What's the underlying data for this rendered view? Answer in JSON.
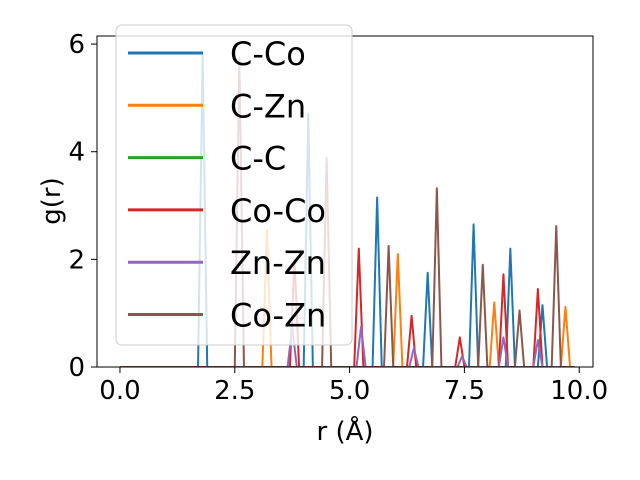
{
  "chart_data": {
    "type": "line",
    "xlabel": "r (Å)",
    "ylabel": "g(r)",
    "xlim": [
      -0.5,
      10.3
    ],
    "ylim": [
      0,
      6.15
    ],
    "xticks": [
      0.0,
      2.5,
      5.0,
      7.5,
      10.0
    ],
    "xtick_labels": [
      "0.0",
      "2.5",
      "5.0",
      "7.5",
      "10.0"
    ],
    "yticks": [
      0,
      2,
      4,
      6
    ],
    "ytick_labels": [
      "0",
      "2",
      "4",
      "6"
    ],
    "grid": false,
    "legend_position": "upper-left",
    "series": [
      {
        "name": "C-Co",
        "color": "#1f77b4",
        "peaks": [
          [
            1.8,
            5.8
          ],
          [
            4.1,
            4.7
          ],
          [
            5.6,
            3.15
          ],
          [
            6.7,
            1.75
          ],
          [
            7.7,
            2.65
          ],
          [
            8.5,
            2.2
          ],
          [
            9.2,
            1.15
          ]
        ]
      },
      {
        "name": "C-Zn",
        "color": "#ff7f0e",
        "peaks": [
          [
            3.2,
            2.55
          ],
          [
            6.05,
            2.1
          ],
          [
            8.15,
            1.2
          ],
          [
            9.7,
            1.12
          ]
        ]
      },
      {
        "name": "C-C",
        "color": "#2ca02c",
        "peaks": []
      },
      {
        "name": "Co-Co",
        "color": "#d62728",
        "peaks": [
          [
            3.8,
            2.0
          ],
          [
            5.2,
            2.2
          ],
          [
            6.35,
            0.95
          ],
          [
            7.4,
            0.55
          ],
          [
            8.35,
            1.72
          ],
          [
            9.1,
            1.45
          ]
        ]
      },
      {
        "name": "Zn-Zn",
        "color": "#9467bd",
        "peaks": [
          [
            3.75,
            0.75
          ],
          [
            5.25,
            0.75
          ],
          [
            6.4,
            0.35
          ],
          [
            7.45,
            0.2
          ],
          [
            8.35,
            0.55
          ],
          [
            9.1,
            0.5
          ]
        ]
      },
      {
        "name": "Co-Zn",
        "color": "#8c564b",
        "peaks": [
          [
            2.6,
            5.75
          ],
          [
            4.5,
            3.88
          ],
          [
            5.85,
            2.25
          ],
          [
            6.9,
            3.32
          ],
          [
            7.9,
            1.9
          ],
          [
            8.7,
            1.05
          ],
          [
            9.5,
            2.62
          ]
        ]
      }
    ]
  }
}
